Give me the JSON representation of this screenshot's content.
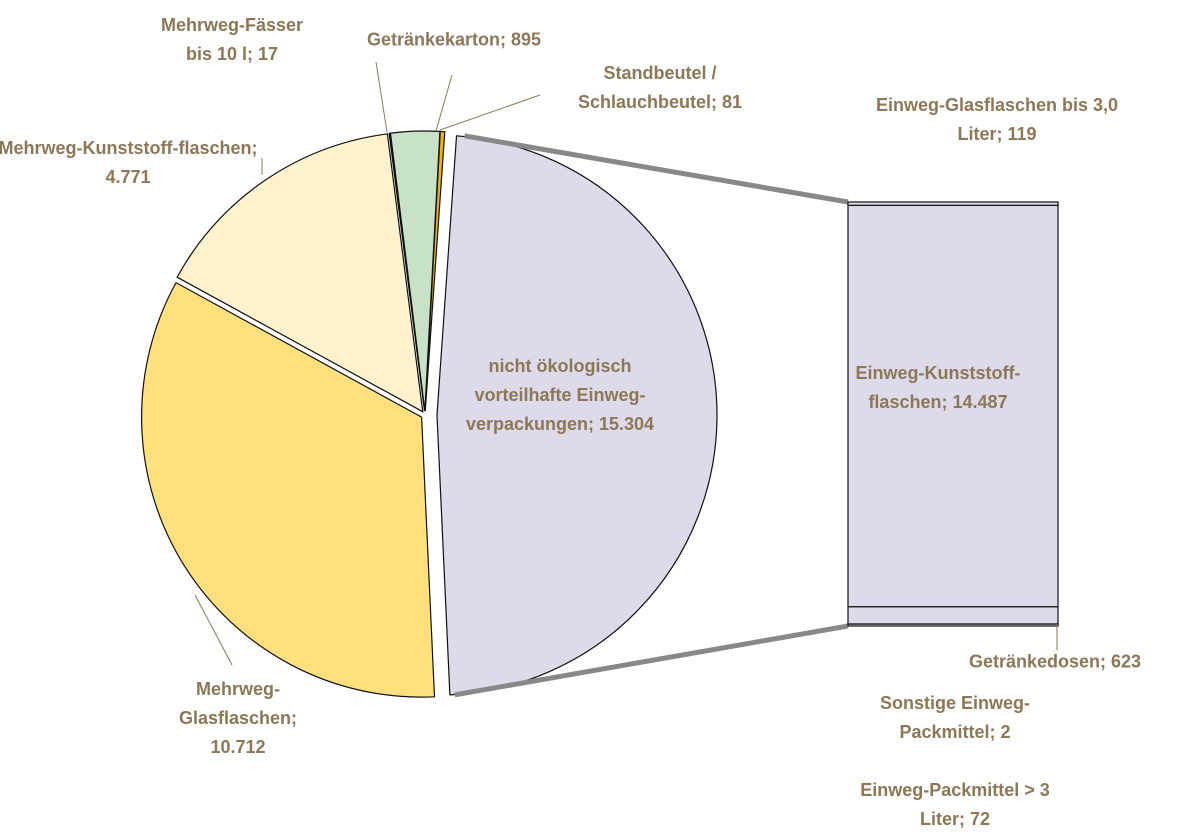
{
  "chart_data": [
    {
      "type": "pie",
      "categories": [
        "nicht ökologisch vorteilhafte Einweg-verpackungen;",
        "Mehrweg-Glasflaschen;",
        "Mehrweg-Kunststoff-flaschen;",
        "Mehrweg-Fässer bis 10 l;",
        "Getränkekarton;",
        "Standbeutel / Schlauchbeutel;"
      ],
      "values": [
        15304,
        10712,
        4771,
        17,
        895,
        81
      ],
      "value_labels": [
        "15.304",
        "10.712",
        "4.771",
        "17",
        "895",
        "81"
      ],
      "colors": [
        "#dddbe9",
        "#ffe07c",
        "#fff2cc",
        "#1f6b2e",
        "#c7e2c6",
        "#f2b600"
      ]
    },
    {
      "type": "bar",
      "stacked": true,
      "categories": [
        "Einweg-Packmittel > 3 Liter;",
        "Sonstige Einweg-Packmittel;",
        "Getränkedosen;",
        "Einweg-Kunststoff-flaschen;",
        "Einweg-Glasflaschen bis 3,0 Liter;"
      ],
      "values": [
        72,
        2,
        623,
        14487,
        119
      ],
      "value_labels": [
        "72",
        "2",
        "623",
        "14.487",
        "119"
      ],
      "color": "#dddbe9"
    }
  ]
}
